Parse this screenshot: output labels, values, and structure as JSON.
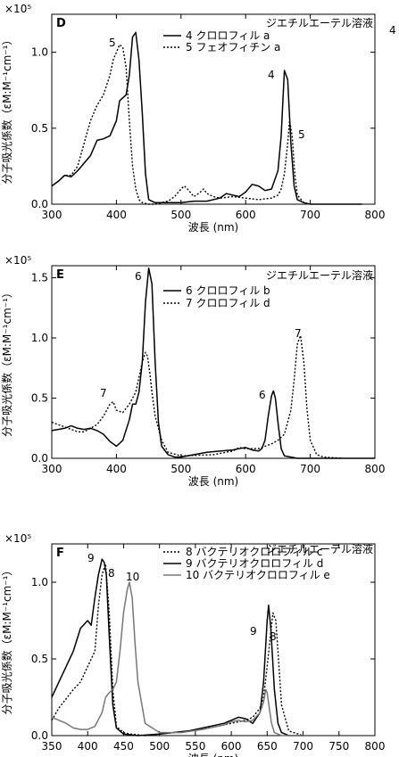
{
  "chart_data": [
    {
      "type": "line",
      "panel_letter": "D",
      "multiplier": "×10⁵",
      "solvent_note": "ジエチルエーテル溶液",
      "xlabel": "波長 (nm)",
      "ylabel": "分子吸光係数（εM:M⁻¹cm⁻¹）",
      "xlim": [
        300,
        800
      ],
      "ylim": [
        0,
        1.25
      ],
      "xticks": [
        300,
        400,
        500,
        600,
        700,
        800
      ],
      "yticks": [
        0,
        0.5,
        1.0
      ],
      "ytick_labels": [
        "0.0",
        "0.5",
        "1.0"
      ],
      "grid": false,
      "legend_position": "top-right",
      "series": [
        {
          "name": "4 クロロフィル a",
          "style": "solid",
          "color": "#000000",
          "x": [
            300,
            310,
            320,
            330,
            340,
            350,
            360,
            370,
            380,
            390,
            400,
            405,
            410,
            415,
            420,
            425,
            430,
            435,
            440,
            445,
            450,
            460,
            480,
            500,
            520,
            540,
            560,
            570,
            580,
            590,
            600,
            610,
            620,
            630,
            640,
            650,
            655,
            660,
            665,
            670,
            675,
            680,
            690,
            700,
            720,
            760,
            780
          ],
          "y": [
            0.12,
            0.15,
            0.19,
            0.18,
            0.22,
            0.27,
            0.32,
            0.42,
            0.43,
            0.45,
            0.55,
            0.68,
            0.7,
            0.72,
            0.85,
            1.1,
            1.13,
            0.95,
            0.6,
            0.2,
            0.03,
            0.01,
            0.01,
            0.01,
            0.02,
            0.02,
            0.04,
            0.07,
            0.06,
            0.05,
            0.08,
            0.13,
            0.12,
            0.09,
            0.1,
            0.22,
            0.45,
            0.88,
            0.82,
            0.4,
            0.12,
            0.03,
            0.01,
            0.0,
            0.0,
            0.0,
            0.0
          ],
          "label": "4",
          "peak_labels": [
            "4",
            "4"
          ]
        },
        {
          "name": "5 フェオフィチン a",
          "style": "dotted",
          "color": "#000000",
          "x": [
            300,
            310,
            320,
            330,
            340,
            350,
            360,
            370,
            380,
            390,
            395,
            400,
            405,
            410,
            415,
            420,
            425,
            430,
            435,
            440,
            450,
            460,
            470,
            480,
            490,
            500,
            505,
            510,
            520,
            530,
            535,
            540,
            550,
            560,
            580,
            600,
            620,
            640,
            650,
            655,
            660,
            665,
            668,
            672,
            676,
            680,
            690,
            700
          ],
          "y": [
            0.12,
            0.15,
            0.19,
            0.19,
            0.25,
            0.4,
            0.55,
            0.65,
            0.72,
            0.85,
            0.95,
            1.0,
            1.05,
            1.03,
            0.9,
            0.55,
            0.25,
            0.1,
            0.03,
            0.01,
            0.0,
            0.0,
            0.01,
            0.02,
            0.05,
            0.1,
            0.12,
            0.1,
            0.05,
            0.08,
            0.1,
            0.07,
            0.05,
            0.04,
            0.05,
            0.04,
            0.03,
            0.04,
            0.06,
            0.1,
            0.2,
            0.4,
            0.55,
            0.45,
            0.2,
            0.06,
            0.01,
            0.0
          ],
          "label": "5",
          "peak_labels": [
            "5",
            "5"
          ]
        }
      ]
    },
    {
      "type": "line",
      "panel_letter": "E",
      "multiplier": "×10⁵",
      "solvent_note": "ジエチルエーテル溶液",
      "xlabel": "波長 (nm)",
      "ylabel": "分子吸光係数（εM:M⁻¹cm⁻¹）",
      "xlim": [
        300,
        800
      ],
      "ylim": [
        0,
        1.6
      ],
      "xticks": [
        300,
        400,
        500,
        600,
        700,
        800
      ],
      "yticks": [
        0,
        0.5,
        1.0,
        1.5
      ],
      "ytick_labels": [
        "0.0",
        "0.5",
        "1.0",
        "1.5"
      ],
      "grid": false,
      "legend_position": "top-right",
      "series": [
        {
          "name": "6 クロロフィル b",
          "style": "solid",
          "color": "#000000",
          "x": [
            300,
            310,
            320,
            330,
            340,
            350,
            360,
            370,
            380,
            390,
            400,
            410,
            420,
            425,
            430,
            435,
            440,
            445,
            450,
            455,
            460,
            465,
            470,
            480,
            490,
            500,
            520,
            540,
            560,
            580,
            590,
            600,
            610,
            620,
            625,
            630,
            635,
            640,
            643,
            646,
            650,
            655,
            660,
            670,
            680,
            700,
            750,
            800
          ],
          "y": [
            0.23,
            0.24,
            0.25,
            0.27,
            0.25,
            0.24,
            0.25,
            0.23,
            0.2,
            0.14,
            0.1,
            0.15,
            0.32,
            0.45,
            0.45,
            0.55,
            0.8,
            1.3,
            1.58,
            1.45,
            0.8,
            0.3,
            0.1,
            0.03,
            0.01,
            0.01,
            0.03,
            0.05,
            0.06,
            0.07,
            0.08,
            0.09,
            0.07,
            0.06,
            0.08,
            0.15,
            0.35,
            0.52,
            0.56,
            0.5,
            0.3,
            0.08,
            0.02,
            0.01,
            0.0,
            0.0,
            0.0,
            0.0
          ],
          "label": "6",
          "peak_labels": [
            "6",
            "6"
          ]
        },
        {
          "name": "7 クロロフィル d",
          "style": "dotted",
          "color": "#000000",
          "x": [
            300,
            310,
            320,
            330,
            340,
            350,
            360,
            370,
            380,
            390,
            395,
            400,
            410,
            420,
            430,
            440,
            445,
            448,
            452,
            455,
            460,
            470,
            480,
            500,
            550,
            580,
            590,
            600,
            620,
            640,
            650,
            660,
            670,
            675,
            680,
            685,
            690,
            695,
            700,
            710,
            720,
            750
          ],
          "y": [
            0.3,
            0.28,
            0.26,
            0.24,
            0.22,
            0.22,
            0.25,
            0.28,
            0.35,
            0.45,
            0.47,
            0.4,
            0.38,
            0.45,
            0.55,
            0.8,
            0.88,
            0.85,
            0.7,
            0.55,
            0.35,
            0.15,
            0.05,
            0.02,
            0.03,
            0.06,
            0.09,
            0.08,
            0.08,
            0.12,
            0.15,
            0.2,
            0.4,
            0.65,
            0.95,
            1.02,
            0.8,
            0.4,
            0.15,
            0.03,
            0.01,
            0.0
          ],
          "label": "7",
          "peak_labels": [
            "7",
            "7"
          ]
        }
      ]
    },
    {
      "type": "line",
      "panel_letter": "F",
      "multiplier": "×10⁵",
      "solvent_note": "ジエチルエーテル溶液",
      "xlabel": "波長 (nm)",
      "ylabel": "分子吸光係数（εM:M⁻¹cm⁻¹）",
      "xlim": [
        350,
        800
      ],
      "ylim": [
        0,
        1.25
      ],
      "xticks": [
        350,
        400,
        450,
        500,
        550,
        600,
        650,
        700,
        750,
        800
      ],
      "yticks": [
        0,
        0.5,
        1.0
      ],
      "ytick_labels": [
        "0.0",
        "0.5",
        "1.0"
      ],
      "grid": false,
      "legend_position": "top-right",
      "series": [
        {
          "name": "8 バクテリオクロロフィル c",
          "style": "dotted",
          "color": "#000000",
          "x": [
            350,
            360,
            370,
            380,
            390,
            400,
            410,
            415,
            420,
            425,
            430,
            435,
            440,
            450,
            460,
            480,
            500,
            540,
            580,
            600,
            620,
            630,
            640,
            645,
            650,
            655,
            658,
            662,
            665,
            670,
            680,
            700
          ],
          "y": [
            0.1,
            0.18,
            0.24,
            0.3,
            0.35,
            0.45,
            0.55,
            0.85,
            1.05,
            1.12,
            0.8,
            0.3,
            0.06,
            0.02,
            0.01,
            0.0,
            0.01,
            0.03,
            0.06,
            0.08,
            0.1,
            0.12,
            0.18,
            0.25,
            0.45,
            0.68,
            0.8,
            0.75,
            0.55,
            0.2,
            0.03,
            0.0
          ],
          "label": "8",
          "peak_labels": [
            "8",
            "8"
          ]
        },
        {
          "name": "9 バクテリオクロロフィル d",
          "style": "solid",
          "color": "#000000",
          "x": [
            350,
            360,
            370,
            380,
            390,
            400,
            405,
            410,
            415,
            420,
            423,
            426,
            430,
            435,
            440,
            450,
            470,
            500,
            540,
            570,
            590,
            600,
            610,
            620,
            630,
            640,
            645,
            650,
            652,
            655,
            660,
            665,
            670,
            680,
            700
          ],
          "y": [
            0.25,
            0.35,
            0.45,
            0.55,
            0.7,
            0.75,
            0.72,
            0.9,
            1.05,
            1.15,
            1.13,
            1.05,
            0.65,
            0.2,
            0.05,
            0.01,
            0.0,
            0.01,
            0.03,
            0.06,
            0.08,
            0.1,
            0.12,
            0.11,
            0.08,
            0.15,
            0.35,
            0.75,
            0.85,
            0.7,
            0.3,
            0.08,
            0.02,
            0.0,
            0.0
          ],
          "label": "9",
          "peak_labels": [
            "9",
            "9"
          ]
        },
        {
          "name": "10 バクテリオクロロフィル e",
          "style": "solid",
          "color": "#777777",
          "x": [
            350,
            360,
            370,
            380,
            390,
            400,
            410,
            420,
            425,
            430,
            435,
            440,
            445,
            450,
            455,
            458,
            462,
            466,
            470,
            480,
            500,
            530,
            560,
            590,
            600,
            610,
            620,
            630,
            640,
            645,
            648,
            650,
            653,
            656,
            660,
            670,
            700
          ],
          "y": [
            0.12,
            0.1,
            0.08,
            0.05,
            0.04,
            0.04,
            0.06,
            0.15,
            0.25,
            0.28,
            0.3,
            0.35,
            0.55,
            0.8,
            0.95,
            1.0,
            0.9,
            0.6,
            0.35,
            0.08,
            0.02,
            0.02,
            0.04,
            0.07,
            0.09,
            0.1,
            0.09,
            0.1,
            0.15,
            0.22,
            0.3,
            0.28,
            0.18,
            0.08,
            0.02,
            0.0,
            0.0
          ],
          "label": "10",
          "peak_labels": [
            "10"
          ]
        }
      ]
    }
  ]
}
